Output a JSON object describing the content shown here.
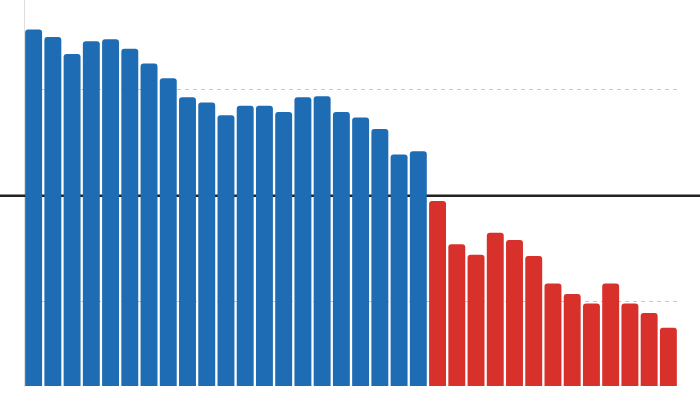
{
  "chart_data": {
    "type": "bar",
    "categories": [
      null,
      null,
      null,
      null,
      null,
      null,
      null,
      null,
      null,
      null,
      null,
      null,
      null,
      null,
      null,
      null,
      null,
      null,
      null,
      null,
      null,
      null,
      null,
      null,
      null,
      null,
      null,
      null,
      null,
      null,
      null,
      null,
      null,
      null
    ],
    "values": [
      1.57,
      1.5,
      1.34,
      1.46,
      1.48,
      1.39,
      1.25,
      1.11,
      0.93,
      0.88,
      0.76,
      0.85,
      0.85,
      0.79,
      0.93,
      0.94,
      0.79,
      0.74,
      0.63,
      0.39,
      0.42,
      -0.05,
      -0.46,
      -0.56,
      -0.35,
      -0.42,
      -0.57,
      -0.83,
      -0.93,
      -1.02,
      -0.83,
      -1.02,
      -1.11,
      -1.25
    ],
    "colors": [
      "#1e6cb4",
      "#1e6cb4",
      "#1e6cb4",
      "#1e6cb4",
      "#1e6cb4",
      "#1e6cb4",
      "#1e6cb4",
      "#1e6cb4",
      "#1e6cb4",
      "#1e6cb4",
      "#1e6cb4",
      "#1e6cb4",
      "#1e6cb4",
      "#1e6cb4",
      "#1e6cb4",
      "#1e6cb4",
      "#1e6cb4",
      "#1e6cb4",
      "#1e6cb4",
      "#1e6cb4",
      "#1e6cb4",
      "#d8302a",
      "#d8302a",
      "#d8302a",
      "#d8302a",
      "#d8302a",
      "#d8302a",
      "#d8302a",
      "#d8302a",
      "#d8302a",
      "#d8302a",
      "#d8302a",
      "#d8302a",
      "#d8302a"
    ],
    "ylim": [
      -1.8,
      1.85
    ],
    "yticks": [
      -1,
      0,
      1
    ],
    "grid": true,
    "tick_labels": false
  }
}
